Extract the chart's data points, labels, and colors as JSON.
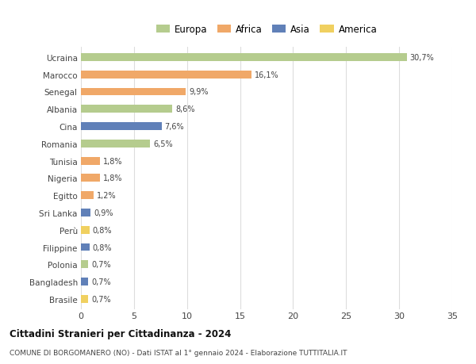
{
  "categories": [
    "Ucraina",
    "Marocco",
    "Senegal",
    "Albania",
    "Cina",
    "Romania",
    "Tunisia",
    "Nigeria",
    "Egitto",
    "Sri Lanka",
    "Perù",
    "Filippine",
    "Polonia",
    "Bangladesh",
    "Brasile"
  ],
  "values": [
    30.7,
    16.1,
    9.9,
    8.6,
    7.6,
    6.5,
    1.8,
    1.8,
    1.2,
    0.9,
    0.8,
    0.8,
    0.7,
    0.7,
    0.7
  ],
  "labels": [
    "30,7%",
    "16,1%",
    "9,9%",
    "8,6%",
    "7,6%",
    "6,5%",
    "1,8%",
    "1,8%",
    "1,2%",
    "0,9%",
    "0,8%",
    "0,8%",
    "0,7%",
    "0,7%",
    "0,7%"
  ],
  "colors": [
    "#b5cc8e",
    "#f0a868",
    "#f0a868",
    "#b5cc8e",
    "#6080b8",
    "#b5cc8e",
    "#f0a868",
    "#f0a868",
    "#f0a868",
    "#6080b8",
    "#f0d060",
    "#6080b8",
    "#b5cc8e",
    "#6080b8",
    "#f0d060"
  ],
  "legend_labels": [
    "Europa",
    "Africa",
    "Asia",
    "America"
  ],
  "legend_colors": [
    "#b5cc8e",
    "#f0a868",
    "#6080b8",
    "#f0d060"
  ],
  "title": "Cittadini Stranieri per Cittadinanza - 2024",
  "subtitle": "COMUNE DI BORGOMANERO (NO) - Dati ISTAT al 1° gennaio 2024 - Elaborazione TUTTITALIA.IT",
  "xlim": [
    0,
    35
  ],
  "xticks": [
    0,
    5,
    10,
    15,
    20,
    25,
    30,
    35
  ],
  "bg_color": "#ffffff",
  "grid_color": "#dddddd",
  "bar_height": 0.45
}
